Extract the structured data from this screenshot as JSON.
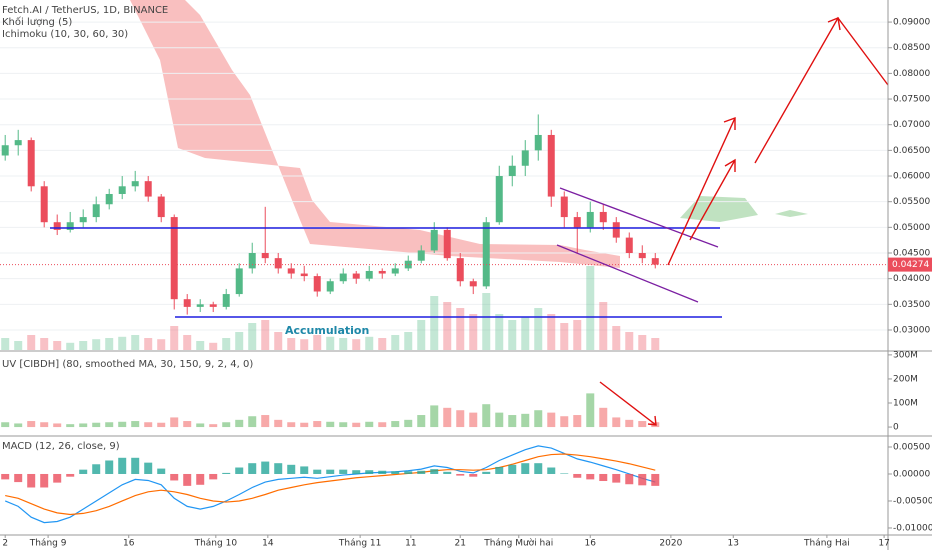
{
  "chart_data": [
    {
      "type": "candlestick",
      "title": "Fetch.AI / TetherUS, 1D, BINANCE",
      "indicators": [
        "Khối lượng (5)",
        "Ichimoku (10, 30, 60, 30)"
      ],
      "annotations": [
        "Accumulation"
      ],
      "up_color": "#53b987",
      "down_color": "#eb4d5c",
      "grid": true,
      "xlim": [
        -0.4,
        67.9
      ],
      "ylim": [
        0.0261,
        0.0943
      ],
      "yticks": [
        {
          "value": 0.03,
          "label": "0.03000"
        },
        {
          "value": 0.035,
          "label": "0.03500"
        },
        {
          "value": 0.04,
          "label": "0.04000"
        },
        {
          "value": 0.045,
          "label": "0.04500"
        },
        {
          "value": 0.05,
          "label": "0.05000"
        },
        {
          "value": 0.055,
          "label": "0.05500"
        },
        {
          "value": 0.06,
          "label": "0.06000"
        },
        {
          "value": 0.065,
          "label": "0.06500"
        },
        {
          "value": 0.07,
          "label": "0.07000"
        },
        {
          "value": 0.075,
          "label": "0.07500"
        },
        {
          "value": 0.08,
          "label": "0.08000"
        },
        {
          "value": 0.085,
          "label": "0.08500"
        },
        {
          "value": 0.09,
          "label": "0.09000"
        }
      ],
      "ohlc": [
        [
          0.064,
          0.068,
          0.063,
          0.066
        ],
        [
          0.066,
          0.069,
          0.064,
          0.067
        ],
        [
          0.067,
          0.0675,
          0.057,
          0.058
        ],
        [
          0.058,
          0.059,
          0.05,
          0.051
        ],
        [
          0.051,
          0.0525,
          0.0485,
          0.0495
        ],
        [
          0.0495,
          0.053,
          0.049,
          0.051
        ],
        [
          0.051,
          0.0535,
          0.05,
          0.052
        ],
        [
          0.052,
          0.056,
          0.051,
          0.0545
        ],
        [
          0.0545,
          0.0575,
          0.0535,
          0.0565
        ],
        [
          0.0565,
          0.06,
          0.0555,
          0.058
        ],
        [
          0.058,
          0.061,
          0.057,
          0.059
        ],
        [
          0.059,
          0.06,
          0.055,
          0.056
        ],
        [
          0.056,
          0.0565,
          0.051,
          0.052
        ],
        [
          0.052,
          0.0525,
          0.034,
          0.036
        ],
        [
          0.036,
          0.037,
          0.033,
          0.0345
        ],
        [
          0.0345,
          0.036,
          0.0335,
          0.035
        ],
        [
          0.035,
          0.0355,
          0.0335,
          0.0345
        ],
        [
          0.0345,
          0.038,
          0.034,
          0.037
        ],
        [
          0.037,
          0.043,
          0.0365,
          0.042
        ],
        [
          0.042,
          0.047,
          0.041,
          0.045
        ],
        [
          0.045,
          0.054,
          0.043,
          0.044
        ],
        [
          0.044,
          0.045,
          0.041,
          0.042
        ],
        [
          0.042,
          0.043,
          0.04,
          0.041
        ],
        [
          0.041,
          0.0425,
          0.0395,
          0.0405
        ],
        [
          0.0405,
          0.041,
          0.0365,
          0.0375
        ],
        [
          0.0375,
          0.04,
          0.037,
          0.0395
        ],
        [
          0.0395,
          0.042,
          0.039,
          0.041
        ],
        [
          0.041,
          0.0415,
          0.039,
          0.04
        ],
        [
          0.04,
          0.0425,
          0.0395,
          0.0415
        ],
        [
          0.0415,
          0.042,
          0.04,
          0.041
        ],
        [
          0.041,
          0.043,
          0.0405,
          0.042
        ],
        [
          0.042,
          0.0445,
          0.0415,
          0.0435
        ],
        [
          0.0435,
          0.0465,
          0.043,
          0.0455
        ],
        [
          0.0455,
          0.051,
          0.045,
          0.0495
        ],
        [
          0.0495,
          0.05,
          0.0435,
          0.044
        ],
        [
          0.044,
          0.045,
          0.0385,
          0.0395
        ],
        [
          0.0395,
          0.04,
          0.037,
          0.0385
        ],
        [
          0.0385,
          0.052,
          0.038,
          0.051
        ],
        [
          0.051,
          0.062,
          0.0505,
          0.06
        ],
        [
          0.06,
          0.064,
          0.058,
          0.062
        ],
        [
          0.062,
          0.067,
          0.06,
          0.065
        ],
        [
          0.065,
          0.072,
          0.063,
          0.068
        ],
        [
          0.068,
          0.069,
          0.054,
          0.056
        ],
        [
          0.056,
          0.057,
          0.05,
          0.052
        ],
        [
          0.052,
          0.053,
          0.045,
          0.05
        ],
        [
          0.05,
          0.055,
          0.049,
          0.053
        ],
        [
          0.053,
          0.0545,
          0.0495,
          0.051
        ],
        [
          0.051,
          0.052,
          0.047,
          0.048
        ],
        [
          0.048,
          0.049,
          0.044,
          0.045
        ],
        [
          0.045,
          0.0465,
          0.043,
          0.044
        ],
        [
          0.044,
          0.045,
          0.042,
          0.04274
        ]
      ]
    },
    {
      "type": "bar",
      "title": "UV [CIBDH] (80, smoothed MA, 30, 150, 9, 2, 4, 0)",
      "ylim": [
        -33,
        312
      ],
      "yticks": [
        {
          "value": 300,
          "label": "300M"
        },
        {
          "value": 200,
          "label": "200M"
        },
        {
          "value": 100,
          "label": "100M"
        },
        0
      ],
      "values": [
        20,
        15,
        25,
        20,
        15,
        12,
        15,
        18,
        20,
        22,
        25,
        20,
        18,
        40,
        25,
        15,
        12,
        20,
        30,
        45,
        50,
        30,
        20,
        18,
        25,
        22,
        20,
        18,
        22,
        20,
        25,
        30,
        50,
        90,
        80,
        70,
        60,
        95,
        60,
        50,
        55,
        70,
        60,
        45,
        50,
        140,
        80,
        40,
        30,
        25,
        20
      ]
    },
    {
      "type": "macd",
      "title": "MACD (12, 26, close, 9)",
      "ylim": [
        -0.0113,
        0.00685
      ],
      "yticks": [
        {
          "value": 0.005,
          "label": "0.00500"
        },
        {
          "value": 0,
          "label": "0.00000"
        },
        {
          "value": -0.005,
          "label": "-0.00500"
        },
        {
          "value": -0.01,
          "label": "-0.01000"
        }
      ],
      "xticks": [
        {
          "value": 0,
          "label": "2"
        },
        {
          "value": 3.3,
          "label": "Tháng 9"
        },
        {
          "value": 9.5,
          "label": "16"
        },
        {
          "value": 16.2,
          "label": "Tháng 10"
        },
        {
          "value": 20.2,
          "label": "14"
        },
        {
          "value": 27.3,
          "label": "Tháng 11"
        },
        {
          "value": 31.2,
          "label": "11"
        },
        {
          "value": 35,
          "label": "21"
        },
        {
          "value": 39.5,
          "label": "Tháng Mười hai"
        },
        {
          "value": 45,
          "label": "16"
        },
        {
          "value": 51.2,
          "label": "2020"
        },
        {
          "value": 56,
          "label": "13"
        },
        {
          "value": 63.2,
          "label": "Tháng Hai"
        },
        {
          "value": 67.6,
          "label": "17"
        }
      ],
      "series": [
        {
          "name": "MACD",
          "color": "#2196f3",
          "values": [
            -0.005,
            -0.006,
            -0.008,
            -0.009,
            -0.0088,
            -0.008,
            -0.0065,
            -0.005,
            -0.0035,
            -0.002,
            -0.001,
            -0.0012,
            -0.002,
            -0.0045,
            -0.006,
            -0.0065,
            -0.006,
            -0.005,
            -0.0038,
            -0.0025,
            -0.0015,
            -0.001,
            -0.0008,
            -0.0006,
            -0.0008,
            -0.0005,
            -0.0002,
            0,
            0.0002,
            0.0003,
            0.0004,
            0.0006,
            0.0009,
            0.0015,
            0.0012,
            0.0005,
            0.0002,
            0.0012,
            0.0025,
            0.0035,
            0.0045,
            0.0052,
            0.0048,
            0.0038,
            0.0028,
            0.0022,
            0.0015,
            0.0008,
            0,
            -0.0008,
            -0.0015
          ]
        },
        {
          "name": "Signal",
          "color": "#ff6d00",
          "values": [
            -0.004,
            -0.0045,
            -0.0055,
            -0.0065,
            -0.0072,
            -0.0075,
            -0.0073,
            -0.0068,
            -0.006,
            -0.005,
            -0.004,
            -0.0033,
            -0.003,
            -0.0033,
            -0.0038,
            -0.0045,
            -0.005,
            -0.0052,
            -0.005,
            -0.0045,
            -0.0038,
            -0.003,
            -0.0025,
            -0.002,
            -0.0016,
            -0.0013,
            -0.001,
            -0.0007,
            -0.0005,
            -0.0003,
            -0.0001,
            0.0001,
            0.0003,
            0.0006,
            0.0008,
            0.0008,
            0.0007,
            0.0008,
            0.0012,
            0.0018,
            0.0025,
            0.0032,
            0.0036,
            0.0037,
            0.0035,
            0.0032,
            0.0028,
            0.0024,
            0.0019,
            0.0013,
            0.0007
          ]
        },
        {
          "name": "Histogram",
          "color": "#26a69a",
          "values": [
            -0.001,
            -0.0015,
            -0.0025,
            -0.0025,
            -0.0016,
            -0.0005,
            0.0008,
            0.0018,
            0.0025,
            0.003,
            0.003,
            0.0021,
            0.001,
            -0.0012,
            -0.0022,
            -0.002,
            -0.001,
            0.0002,
            0.0012,
            0.002,
            0.0023,
            0.002,
            0.0017,
            0.0014,
            0.0008,
            0.0008,
            0.0008,
            0.0007,
            0.0007,
            0.0006,
            0.0005,
            0.0005,
            0.0006,
            0.0009,
            0.0004,
            -0.0003,
            -0.0005,
            0.0004,
            0.0013,
            0.0017,
            0.002,
            0.002,
            0.0012,
            0.0001,
            -0.0007,
            -0.001,
            -0.0013,
            -0.0016,
            -0.0019,
            -0.0021,
            -0.0022
          ]
        }
      ]
    }
  ]
}
